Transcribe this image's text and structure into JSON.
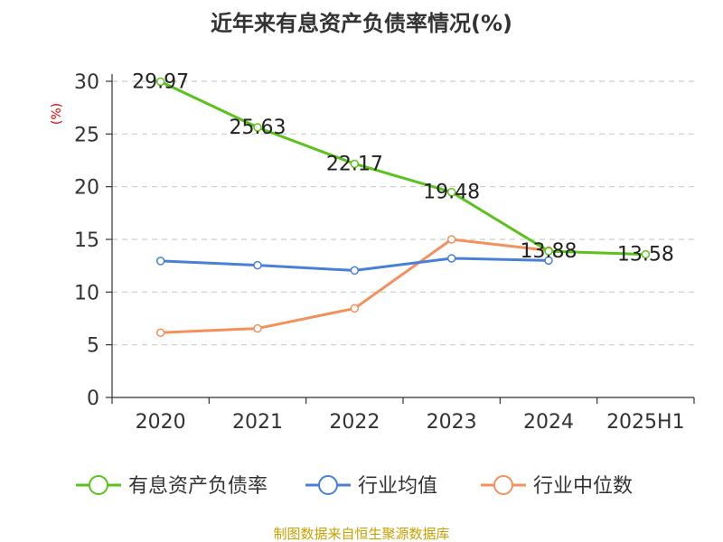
{
  "chart_data": {
    "type": "line",
    "title": "近年来有息资产负债率情况(%)",
    "ylabel": "(%)",
    "xlabel": "",
    "categories": [
      "2020",
      "2021",
      "2022",
      "2023",
      "2024",
      "2025H1"
    ],
    "ylim": [
      0,
      30
    ],
    "yticks": [
      0,
      5,
      10,
      15,
      20,
      25,
      30
    ],
    "grid": "horizontal dashed",
    "legend_position": "bottom",
    "series": [
      {
        "name": "有息资产负债率",
        "color": "#5ac21c",
        "values": [
          29.97,
          25.63,
          22.17,
          19.48,
          13.88,
          13.58
        ],
        "labels": [
          "29.97",
          "25.63",
          "22.17",
          "19.48",
          "13.88",
          "13.58"
        ]
      },
      {
        "name": "行业均值",
        "color": "#4a7fd8",
        "values": [
          12.95,
          12.55,
          12.05,
          13.2,
          13.0,
          null
        ]
      },
      {
        "name": "行业中位数",
        "color": "#f5905b",
        "values": [
          6.15,
          6.55,
          8.45,
          15.0,
          13.95,
          null
        ]
      }
    ]
  },
  "footer": {
    "source": "制图数据来自恒生聚源数据库"
  }
}
